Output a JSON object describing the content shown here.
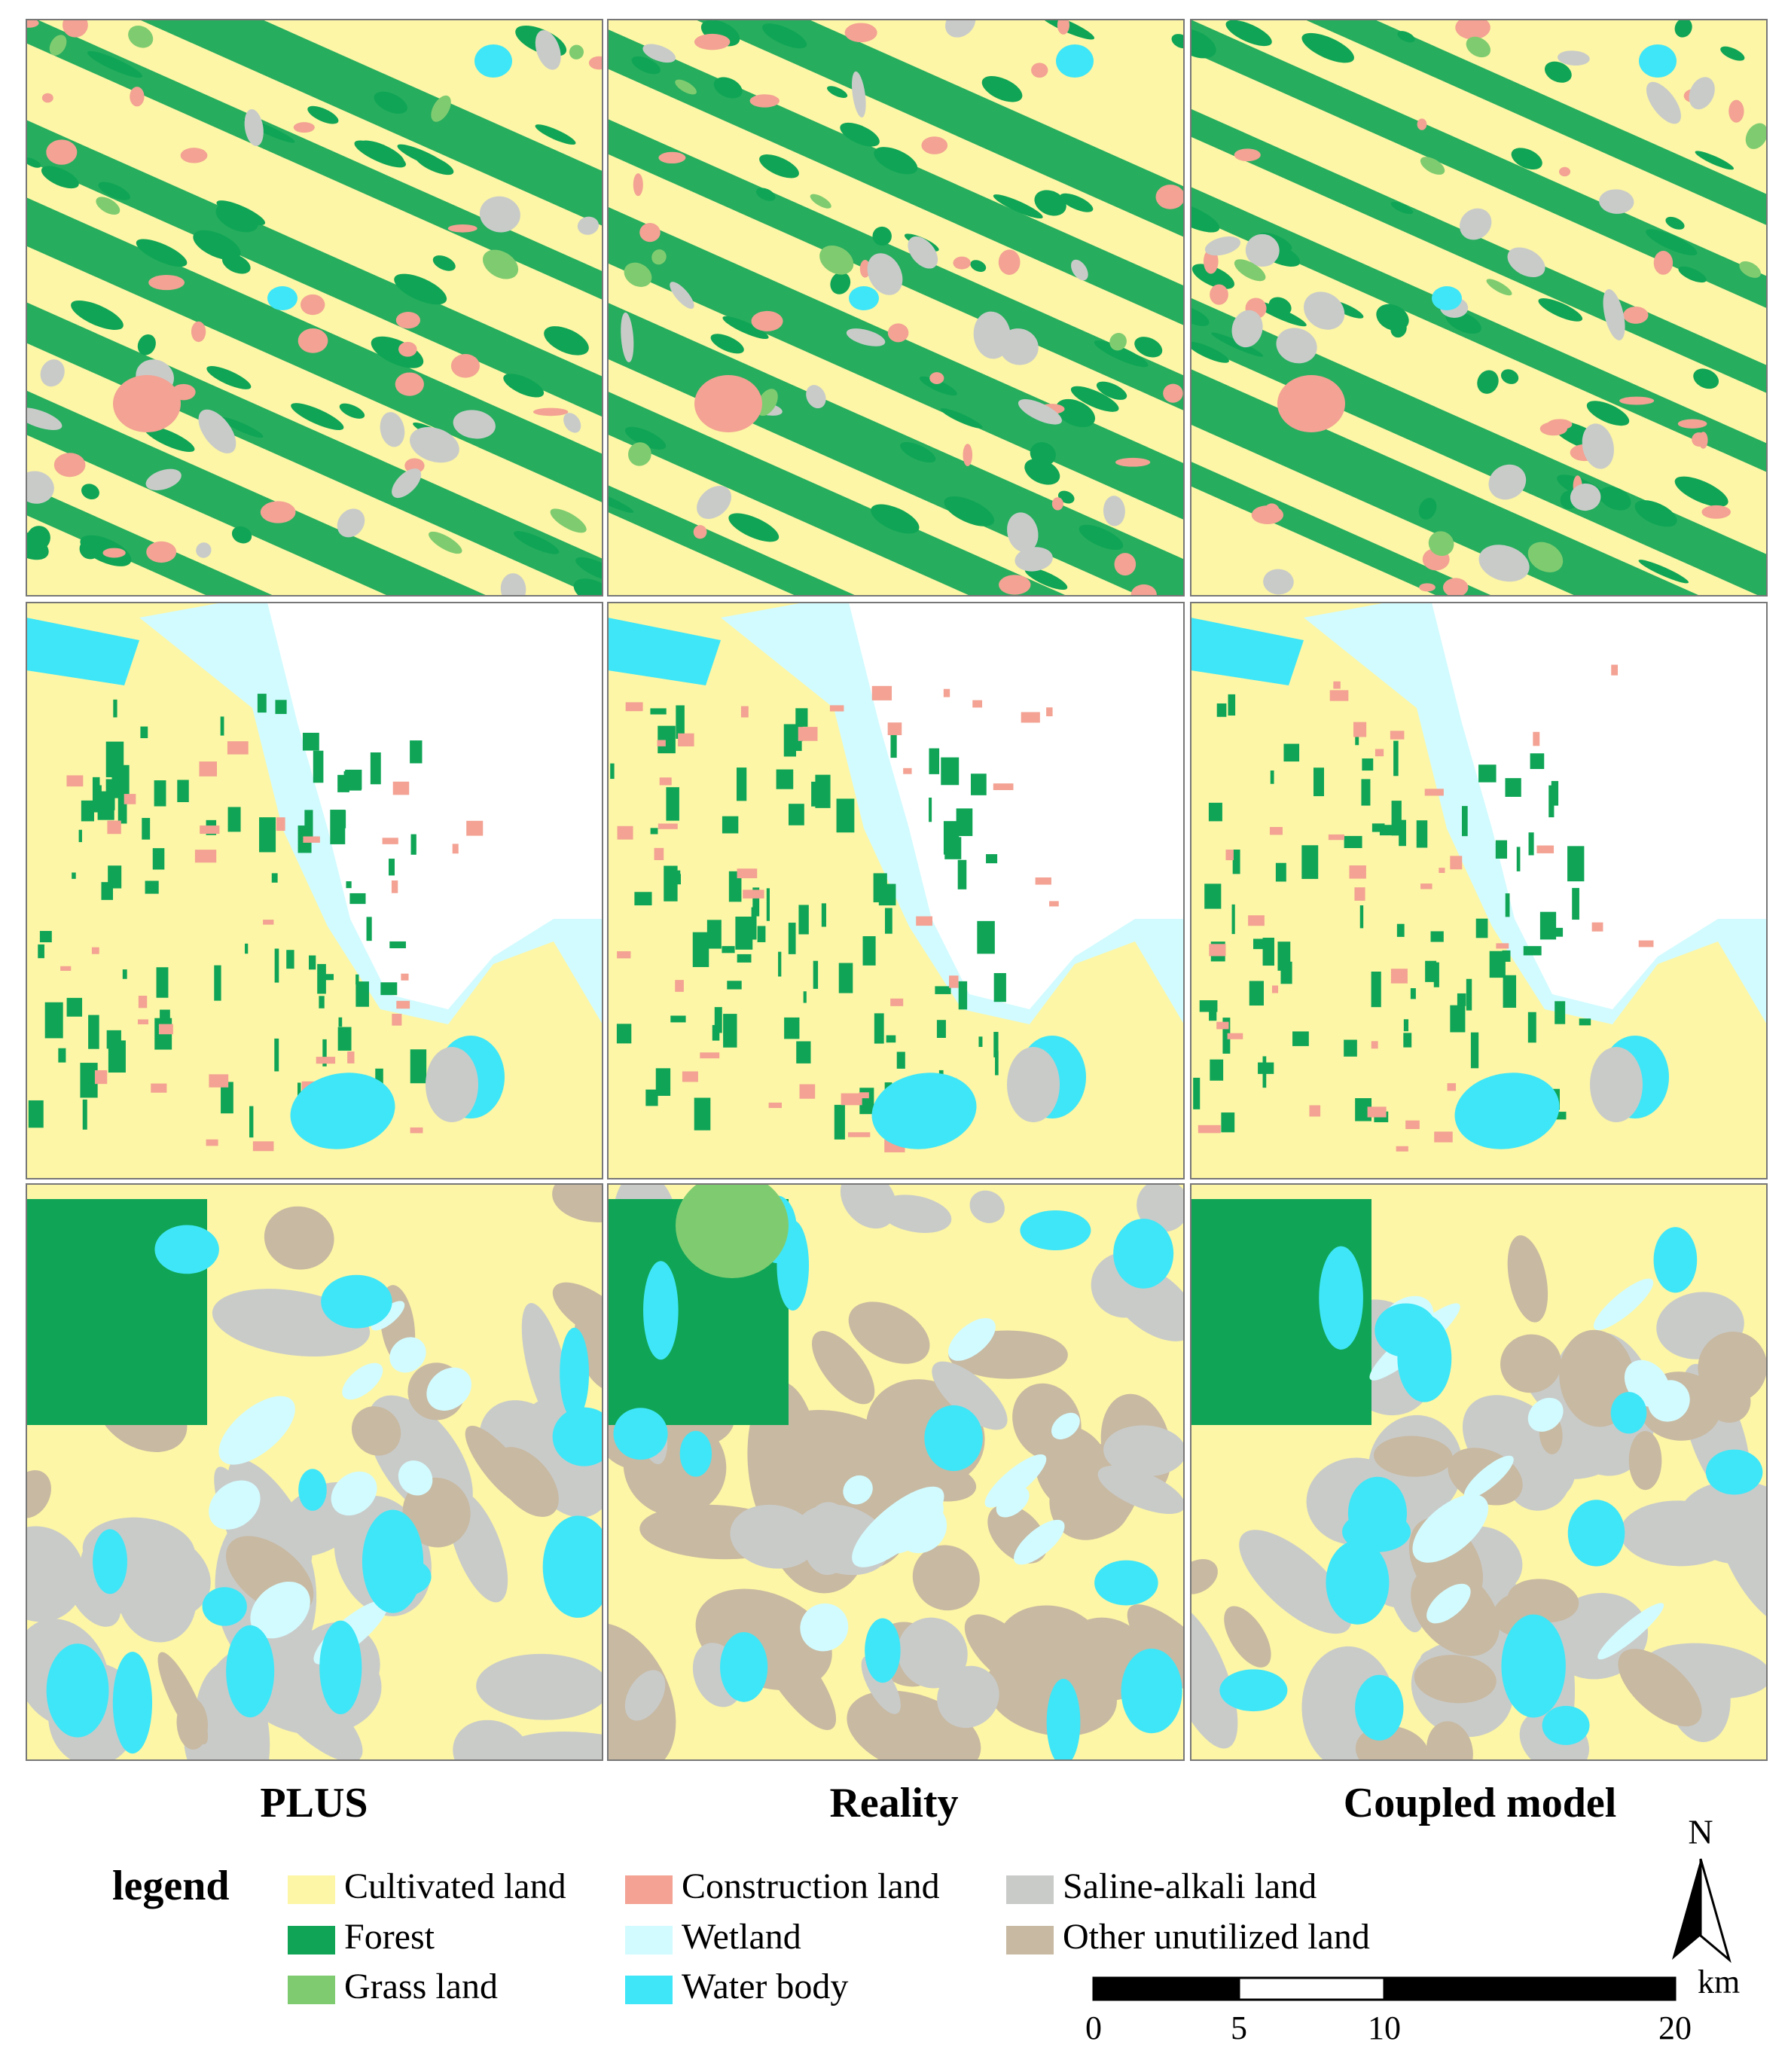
{
  "columns": [
    "PLUS",
    "Reality",
    "Coupled model"
  ],
  "legend": {
    "title": "legend",
    "items": [
      {
        "label": "Cultivated land",
        "color": "#fdf6a6"
      },
      {
        "label": "Forest",
        "color": "#10a556"
      },
      {
        "label": "Grass land",
        "color": "#7fcc70"
      },
      {
        "label": "Construction land",
        "color": "#f3a293"
      },
      {
        "label": "Wetland",
        "color": "#d2fbff"
      },
      {
        "label": "Water body",
        "color": "#3fe6f7"
      },
      {
        "label": "Saline-alkali land",
        "color": "#c9cbc9"
      },
      {
        "label": "Other unutilized land",
        "color": "#c8b9a2"
      }
    ]
  },
  "north": "N",
  "scale_bar": {
    "ticks": [
      0,
      5,
      10,
      20
    ],
    "unit": "km"
  }
}
